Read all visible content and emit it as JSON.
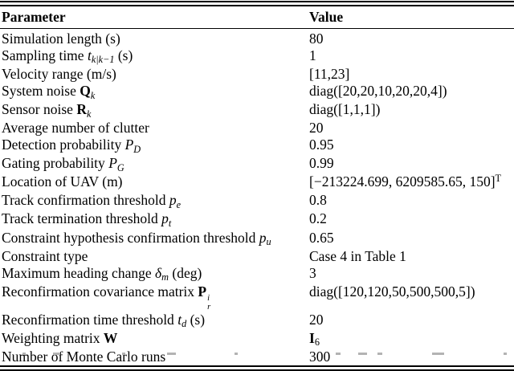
{
  "colors": {
    "text": "#000000",
    "background": "#ffffff",
    "rule": "#000000",
    "cropped_fragment": "#b3b3b3"
  },
  "table": {
    "headers": [
      "Parameter",
      "Value"
    ],
    "rows": [
      {
        "param": [
          {
            "t": "Simulation length (s)"
          }
        ],
        "value": [
          {
            "t": "80"
          }
        ]
      },
      {
        "param": [
          {
            "t": "Sampling time "
          },
          {
            "t": "t",
            "s": "mi"
          },
          {
            "t": "k|k−1",
            "s": "subi"
          },
          {
            "t": " (s)"
          }
        ],
        "value": [
          {
            "t": "1"
          }
        ]
      },
      {
        "param": [
          {
            "t": "Velocity range (m/s)"
          }
        ],
        "value": [
          {
            "t": "[11,23]"
          }
        ]
      },
      {
        "param": [
          {
            "t": "System noise "
          },
          {
            "t": "Q",
            "s": "mb"
          },
          {
            "t": "k",
            "s": "subi"
          }
        ],
        "value": [
          {
            "t": "diag([20,20,10,20,20,4])"
          }
        ]
      },
      {
        "param": [
          {
            "t": "Sensor noise "
          },
          {
            "t": "R",
            "s": "mb"
          },
          {
            "t": "k",
            "s": "subi"
          }
        ],
        "value": [
          {
            "t": "diag([1,1,1])"
          }
        ]
      },
      {
        "param": [
          {
            "t": "Average number of clutter"
          }
        ],
        "value": [
          {
            "t": "20"
          }
        ]
      },
      {
        "param": [
          {
            "t": "Detection probability "
          },
          {
            "t": "P",
            "s": "mi"
          },
          {
            "t": "D",
            "s": "subi"
          }
        ],
        "value": [
          {
            "t": "0.95"
          }
        ]
      },
      {
        "param": [
          {
            "t": "Gating probability "
          },
          {
            "t": "P",
            "s": "mi"
          },
          {
            "t": "G",
            "s": "subi"
          }
        ],
        "value": [
          {
            "t": "0.99"
          }
        ]
      },
      {
        "param": [
          {
            "t": "Location of UAV (m)"
          }
        ],
        "value": [
          {
            "t": "[−213224.699, 6209585.65, 150]"
          },
          {
            "t": "T",
            "s": "sup"
          }
        ]
      },
      {
        "param": [
          {
            "t": "Track confirmation threshold "
          },
          {
            "t": "p",
            "s": "mi"
          },
          {
            "t": "e",
            "s": "subi"
          }
        ],
        "value": [
          {
            "t": "0.8"
          }
        ]
      },
      {
        "param": [
          {
            "t": "Track termination threshold "
          },
          {
            "t": "p",
            "s": "mi"
          },
          {
            "t": "t",
            "s": "subi"
          }
        ],
        "value": [
          {
            "t": "0.2"
          }
        ]
      },
      {
        "param": [
          {
            "t": "Constraint hypothesis confirmation threshold "
          },
          {
            "t": "p",
            "s": "mi"
          },
          {
            "t": "u",
            "s": "subi"
          }
        ],
        "value": [
          {
            "t": "0.65"
          }
        ]
      },
      {
        "param": [
          {
            "t": "Constraint type"
          }
        ],
        "value": [
          {
            "t": "Case 4 in Table 1"
          }
        ]
      },
      {
        "param": [
          {
            "t": "Maximum heading change "
          },
          {
            "t": "δ",
            "s": "mi"
          },
          {
            "t": "m",
            "s": "subi"
          },
          {
            "t": " (deg)"
          }
        ],
        "value": [
          {
            "t": "3"
          }
        ]
      },
      {
        "param": [
          {
            "t": "Reconfirmation covariance matrix "
          },
          {
            "t": "P",
            "s": "mb"
          },
          {
            "stack": {
              "sup": "i",
              "sub": "r"
            }
          }
        ],
        "value": [
          {
            "t": "diag([120,120,50,500,500,5])"
          }
        ]
      },
      {
        "param": [
          {
            "t": "Reconfirmation time threshold "
          },
          {
            "t": "t",
            "s": "mi"
          },
          {
            "t": "d",
            "s": "subi"
          },
          {
            "t": " (s)"
          }
        ],
        "value": [
          {
            "t": "20"
          }
        ]
      },
      {
        "param": [
          {
            "t": "Weighting matrix "
          },
          {
            "t": "W",
            "s": "mb"
          }
        ],
        "value": [
          {
            "t": "I",
            "s": "mb"
          },
          {
            "t": "6",
            "s": "sub"
          }
        ]
      },
      {
        "param": [
          {
            "t": "Number of Monte Carlo runs"
          }
        ],
        "value": [
          {
            "t": "300"
          }
        ]
      }
    ]
  }
}
